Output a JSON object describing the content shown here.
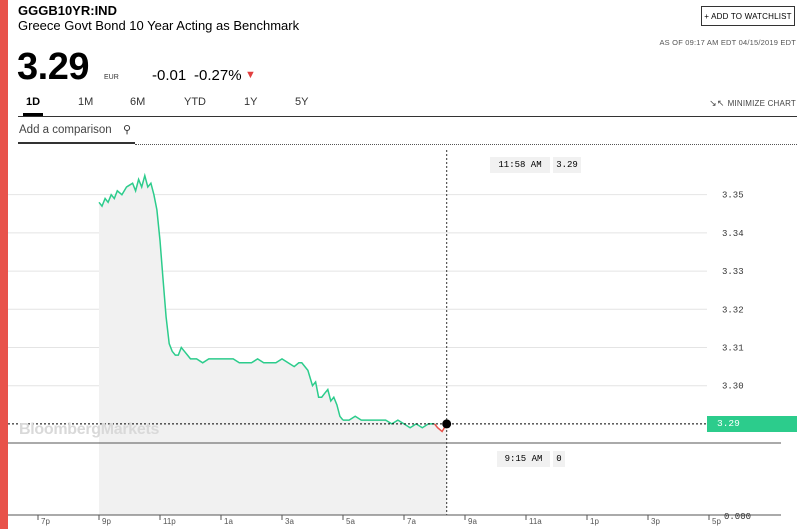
{
  "header": {
    "ticker": "GGGB10YR:IND",
    "name": "Greece Govt Bond 10 Year Acting as Benchmark",
    "watchlist_label": "+ ADD TO WATCHLIST",
    "as_of": "AS OF 09:17 AM EDT 04/15/2019 EDT"
  },
  "quote": {
    "price": "3.29",
    "currency": "EUR",
    "change": "-0.01",
    "change_pct": "-0.27%",
    "direction_icon": "▼",
    "down_color": "#e23f3f"
  },
  "tabs": [
    {
      "label": "1D",
      "active": true
    },
    {
      "label": "1M"
    },
    {
      "label": "6M"
    },
    {
      "label": "YTD"
    },
    {
      "label": "1Y"
    },
    {
      "label": "5Y"
    }
  ],
  "minimize": {
    "label": "MINIMIZE CHART",
    "icon": "↘↖"
  },
  "comparison": {
    "placeholder": "Add a comparison",
    "icon": "search-icon"
  },
  "crosshair": {
    "time_label": "11:58 AM",
    "value_label": "3.29",
    "volume_time_label": "9:15 AM",
    "volume_value_label": "0"
  },
  "last_value_label": "3.29",
  "brand": "BloombergMarkets",
  "colors": {
    "line": "#2ccc8c",
    "down": "#e8524a",
    "fill": "#f1f1f1",
    "accent_bar": "#e8524a"
  },
  "chart_data": {
    "type": "line",
    "x_tick_labels": [
      "7p",
      "9p",
      "11p",
      "1a",
      "3a",
      "5a",
      "7a",
      "9a",
      "11a",
      "1p",
      "3p",
      "5p"
    ],
    "y_ticks": [
      3.3,
      3.31,
      3.32,
      3.33,
      3.34,
      3.35
    ],
    "y_tick_labels": [
      "3.30",
      "3.31",
      "3.32",
      "3.33",
      "3.34",
      "3.35"
    ],
    "ylim": [
      3.285,
      3.363
    ],
    "volume_axis_label": "0.000",
    "last_value": 3.29,
    "grid": true,
    "series": [
      {
        "x": [
          2.0,
          2.1,
          2.2,
          2.3,
          2.4,
          2.5,
          2.6,
          2.75,
          2.9,
          3.1,
          3.2,
          3.3,
          3.4,
          3.5,
          3.6,
          3.7,
          3.8,
          3.9,
          4.0,
          4.1,
          4.2,
          4.3,
          4.4,
          4.5,
          4.6,
          4.7,
          4.8,
          4.9,
          5.0,
          5.2,
          5.4,
          5.6,
          5.8,
          6.0,
          6.2,
          6.4,
          6.6,
          6.8,
          7.0,
          7.2,
          7.4,
          7.6,
          7.8,
          8.0,
          8.2,
          8.4,
          8.55,
          8.65,
          8.75,
          8.85,
          9.0,
          9.1,
          9.2,
          9.3,
          9.4,
          9.5,
          9.6,
          9.7,
          9.8,
          9.9,
          10.0
        ],
        "y": [
          3.348,
          3.347,
          3.349,
          3.348,
          3.35,
          3.349,
          3.351,
          3.35,
          3.352,
          3.353,
          3.351,
          3.354,
          3.352,
          3.355,
          3.352,
          3.353,
          3.35,
          3.346,
          3.338,
          3.328,
          3.318,
          3.311,
          3.309,
          3.308,
          3.308,
          3.31,
          3.309,
          3.308,
          3.307,
          3.307,
          3.306,
          3.307,
          3.307,
          3.307,
          3.307,
          3.307,
          3.306,
          3.306,
          3.306,
          3.307,
          3.306,
          3.306,
          3.306,
          3.307,
          3.306,
          3.305,
          3.306,
          3.306,
          3.305,
          3.304,
          3.3,
          3.301,
          3.297,
          3.297,
          3.298,
          3.299,
          3.296,
          3.297,
          3.295,
          3.292,
          3.291
        ]
      },
      {
        "x": [
          10.0,
          10.2,
          10.4,
          10.6,
          10.8,
          11.0,
          11.2,
          11.4,
          11.6,
          11.8,
          12.0,
          12.2,
          12.4,
          12.6,
          12.8,
          13.0
        ],
        "y": [
          3.291,
          3.291,
          3.292,
          3.291,
          3.291,
          3.291,
          3.291,
          3.291,
          3.29,
          3.291,
          3.29,
          3.289,
          3.29,
          3.289,
          3.29,
          3.29
        ]
      },
      {
        "x": [
          13.0,
          13.1,
          13.25,
          13.4
        ],
        "y": [
          3.29,
          3.289,
          3.288,
          3.29
        ]
      }
    ],
    "cursor_x": 13.4
  }
}
